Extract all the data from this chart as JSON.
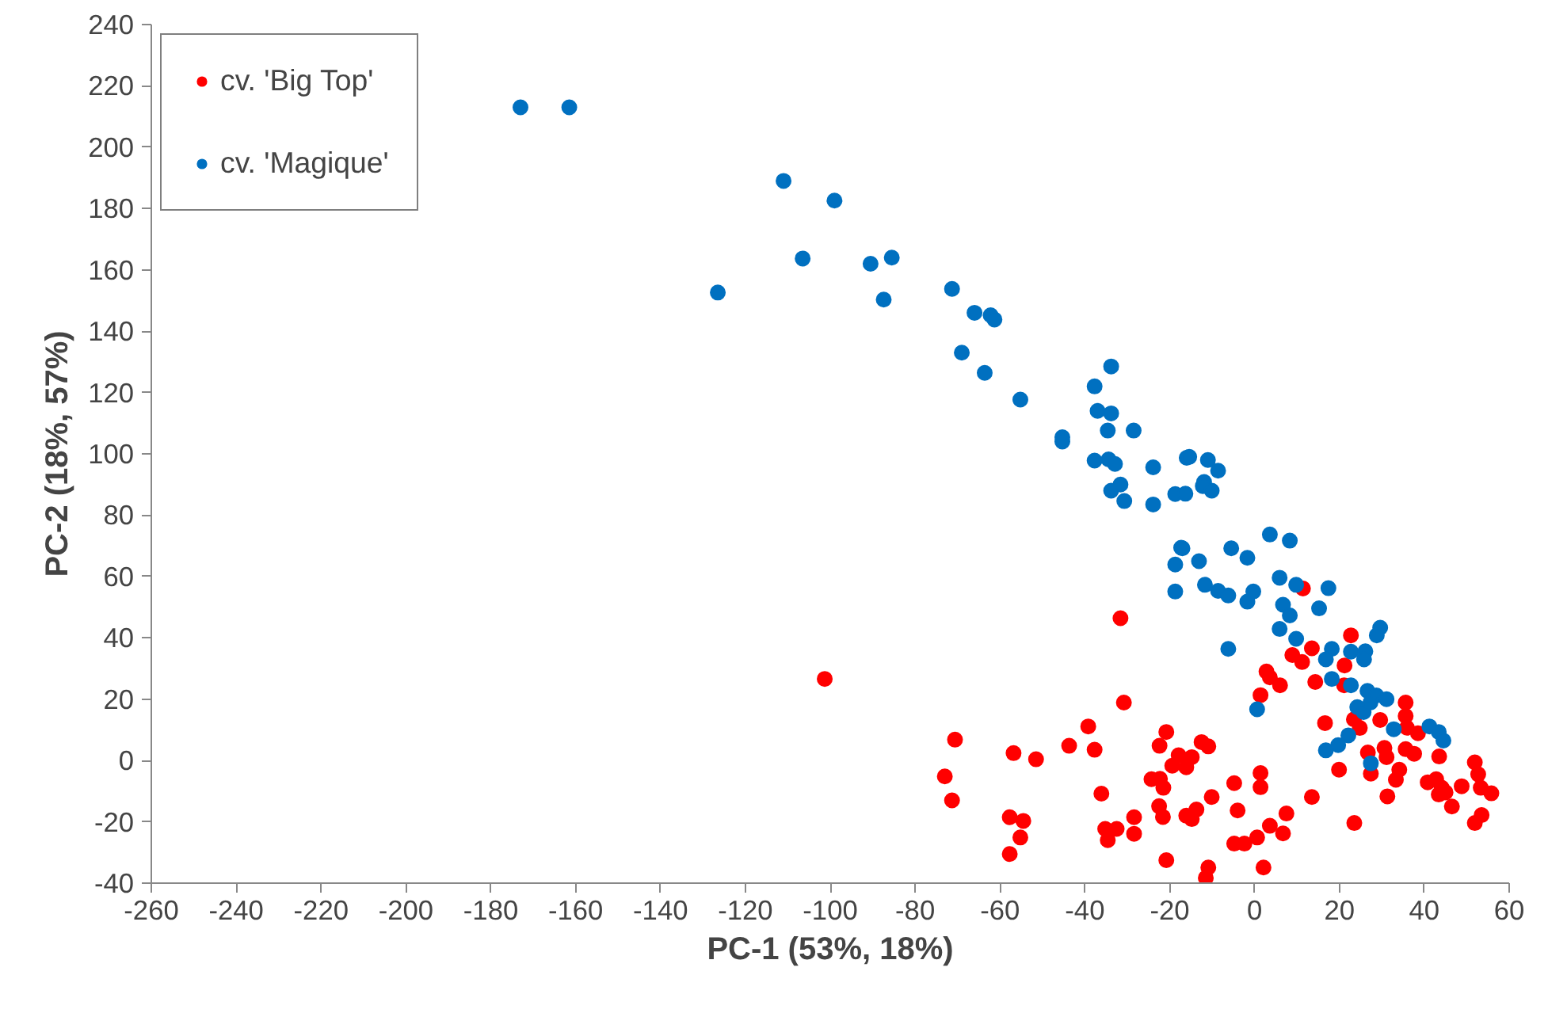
{
  "chart_data": {
    "type": "scatter",
    "xlabel": "PC-1 (53%, 18%)",
    "ylabel": "PC-2 (18%, 57%)",
    "xlim": [
      -260,
      60
    ],
    "ylim": [
      -40,
      240
    ],
    "xticks": [
      -260,
      -240,
      -220,
      -200,
      -180,
      -160,
      -140,
      -120,
      -100,
      -80,
      -60,
      -40,
      -20,
      0,
      20,
      40,
      60
    ],
    "yticks": [
      -40,
      -20,
      0,
      20,
      40,
      60,
      80,
      100,
      120,
      140,
      160,
      180,
      200,
      220,
      240
    ],
    "grid": false,
    "legend": "top left",
    "marker": "circle",
    "series": [
      {
        "name": "cv. 'Big Top'",
        "color": "#ff0000",
        "x": [
          -101.3,
          -31.6,
          11.4,
          22.7,
          13.5,
          21.2,
          8.9,
          11.2,
          2.8,
          3.6,
          6,
          1.4,
          14.3,
          21.1,
          -30.8,
          35.6,
          35.6,
          35.9,
          38.5,
          23.4,
          24.8,
          29.6,
          16.6,
          -70.6,
          -39.2,
          -43.7,
          -37.7,
          -56.8,
          -51.5,
          -20.8,
          -22.4,
          -12.5,
          -10.9,
          -17.9,
          -14.8,
          -19.4,
          -16.1,
          -73,
          -71.3,
          -36.1,
          -24.3,
          -22.3,
          -21.5,
          -4.8,
          1.4,
          1.4,
          -10.1,
          13.5,
          19.9,
          26.7,
          30.6,
          31.1,
          27.4,
          34.1,
          33.3,
          31.3,
          35.6,
          37.6,
          43.5,
          40.8,
          42.8,
          44.1,
          45,
          43.4,
          48.8,
          46.5,
          51.9,
          52.7,
          53.3,
          55.8,
          51.9,
          53.5,
          23.5,
          -57.7,
          -54.5,
          -55.2,
          -57.7,
          -35.2,
          -32.5,
          -34.6,
          -28.4,
          -28.4,
          -22.5,
          -21.6,
          -16.1,
          -14.8,
          -13.7,
          -20.8,
          -10.9,
          -11.5,
          -4.8,
          -2.4,
          0.6,
          3.6,
          6.7,
          7.5,
          2.1,
          -4
        ],
        "values": [
          26.6,
          46.4,
          56.1,
          40.8,
          36.6,
          31,
          34.4,
          32.1,
          29,
          27.1,
          24.5,
          21.3,
          25.6,
          24.5,
          18.9,
          18.9,
          14.5,
          10.7,
          8.9,
          13.4,
          10.6,
          13.2,
          12.2,
          6.8,
          11.1,
          4.8,
          3.5,
          2.4,
          0.4,
          9.3,
          4.8,
          6,
          4.6,
          1.7,
          1.1,
          -1.7,
          -2.2,
          -5.2,
          -13,
          -10.8,
          -6.1,
          -6,
          -8.9,
          -7.4,
          -4.1,
          -8.7,
          -11.9,
          -11.9,
          -3,
          2.6,
          4.1,
          1.1,
          -4.3,
          -3,
          -6.3,
          -11.7,
          3.7,
          2.2,
          1.3,
          -7.1,
          -6.1,
          -8.9,
          -10.4,
          -11.1,
          -8.4,
          -15,
          -0.6,
          -4.5,
          -8.9,
          -10.7,
          -20.4,
          -17.8,
          -20.4,
          -18.5,
          -19.7,
          -25.1,
          -30.5,
          -22.3,
          -22.3,
          -26,
          -18.5,
          -23.9,
          -14.9,
          -18.4,
          -18,
          -19.1,
          -16,
          -32.5,
          -34.9,
          -38.3,
          -27.1,
          -27.1,
          -25.1,
          -21.3,
          -23.8,
          -17.3,
          -34.9,
          -16.3
        ]
      },
      {
        "name": "cv. 'Magique'",
        "color": "#0070c0",
        "x": [
          -173,
          -161.5,
          -111,
          -99,
          -106.5,
          -126.5,
          -87.4,
          -71.3,
          -66,
          -62.2,
          -61.3,
          -69,
          -63.6,
          -55.2,
          -33.8,
          -37.7,
          -37,
          -33.8,
          -34.6,
          -28.5,
          -45.3,
          -45.3,
          -37.7,
          -34.4,
          -32.9,
          -23.9,
          -31.6,
          -33.8,
          -30.7,
          -23.9,
          -18.7,
          -16,
          -15.4,
          -11,
          -8.6,
          -11.9,
          -12.2,
          -10.1,
          -16.3,
          -17.3,
          -18.7,
          -18.7,
          3.6,
          8.3,
          -17,
          -5.5,
          -1.7,
          -13.1,
          -11.7,
          -8.6,
          -6.2,
          -1.7,
          -0.3,
          5.9,
          9.8,
          17.4,
          6.7,
          8.3,
          15.2,
          5.9,
          9.8,
          -6.2,
          29.6,
          28.8,
          18.2,
          16.8,
          22.7,
          26.1,
          25.8,
          18.2,
          22.7,
          0.6,
          24.2,
          26.6,
          28.7,
          31.1,
          25.7,
          27.3,
          32.8,
          41.2,
          43.4,
          44.5,
          22.1,
          19.7,
          16.8,
          27.4,
          -90.5,
          -85.5
        ],
        "values": [
          213,
          213,
          189,
          182.6,
          163.7,
          152.6,
          150.3,
          153.8,
          146,
          145.2,
          143.8,
          133,
          126.4,
          117.7,
          128.5,
          122,
          114,
          113.2,
          107.6,
          107.6,
          105.4,
          104,
          97.8,
          98.2,
          96.7,
          95.6,
          90,
          88,
          84.6,
          83.5,
          86.9,
          98.7,
          99,
          98,
          94.5,
          90.8,
          89.5,
          88,
          87,
          69.4,
          63.9,
          55.1,
          73.7,
          71.7,
          69.2,
          69.2,
          66.1,
          65,
          57.3,
          55.3,
          53.8,
          51.8,
          55.1,
          59.6,
          57.3,
          56.2,
          50.8,
          47.3,
          49.6,
          42.9,
          39.7,
          36.4,
          43.3,
          40.8,
          36.4,
          33,
          35.5,
          35.6,
          33,
          26.6,
          24.5,
          16.7,
          17.4,
          22.7,
          21.2,
          20,
          15.8,
          18.9,
          10.2,
          11.1,
          9.3,
          6.5,
          8.2,
          5,
          3.3,
          -0.9,
          162,
          164
        ]
      }
    ]
  }
}
